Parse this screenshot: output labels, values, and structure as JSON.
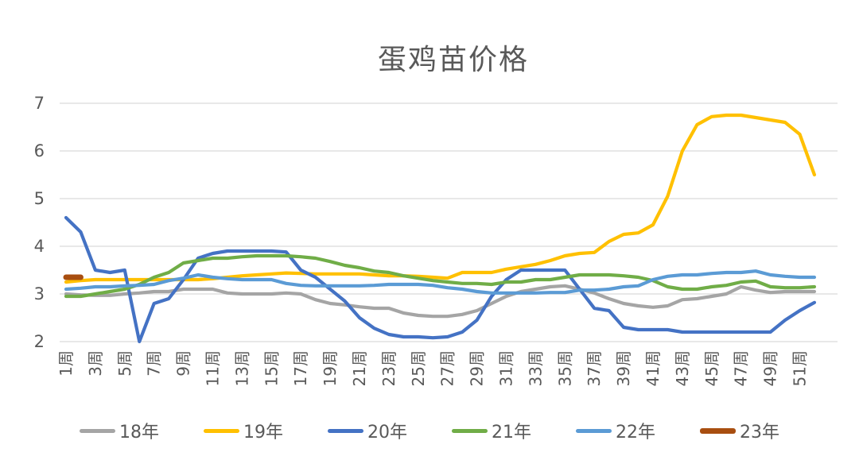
{
  "chart_data": {
    "type": "line",
    "title": "蛋鸡苗价格",
    "x_unit_suffix": "周",
    "n_points": 52,
    "x_tick_labels": [
      "1周",
      "3周",
      "5周",
      "7周",
      "9周",
      "11周",
      "13周",
      "15周",
      "17周",
      "19周",
      "21周",
      "23周",
      "25周",
      "27周",
      "29周",
      "31周",
      "33周",
      "35周",
      "37周",
      "39周",
      "41周",
      "43周",
      "45周",
      "47周",
      "49周",
      "51周"
    ],
    "x_tick_weeks": [
      1,
      3,
      5,
      7,
      9,
      11,
      13,
      15,
      17,
      19,
      21,
      23,
      25,
      27,
      29,
      31,
      33,
      35,
      37,
      39,
      41,
      43,
      45,
      47,
      49,
      51
    ],
    "y_ticks": [
      2,
      3,
      4,
      5,
      6,
      7
    ],
    "ylim": [
      2,
      7
    ],
    "grid": "horizontal-only",
    "legend_position": "bottom",
    "axis_text_color": "#595959",
    "gridline_color": "#D9D9D9",
    "series": [
      {
        "name": "18年",
        "color": "#A5A5A5",
        "values": [
          3.0,
          2.98,
          2.97,
          2.97,
          3.0,
          3.02,
          3.05,
          3.05,
          3.1,
          3.1,
          3.1,
          3.02,
          3.0,
          3.0,
          3.0,
          3.02,
          3.0,
          2.88,
          2.8,
          2.77,
          2.73,
          2.7,
          2.7,
          2.6,
          2.55,
          2.53,
          2.53,
          2.57,
          2.65,
          2.8,
          2.95,
          3.05,
          3.1,
          3.15,
          3.17,
          3.1,
          3.02,
          2.9,
          2.8,
          2.75,
          2.72,
          2.75,
          2.88,
          2.9,
          2.95,
          3.0,
          3.15,
          3.08,
          3.03,
          3.05,
          3.05,
          3.05
        ]
      },
      {
        "name": "19年",
        "color": "#FFC000",
        "values": [
          3.25,
          3.28,
          3.3,
          3.3,
          3.3,
          3.3,
          3.3,
          3.3,
          3.3,
          3.3,
          3.32,
          3.35,
          3.38,
          3.4,
          3.42,
          3.44,
          3.43,
          3.42,
          3.42,
          3.42,
          3.42,
          3.4,
          3.38,
          3.38,
          3.37,
          3.35,
          3.33,
          3.45,
          3.45,
          3.45,
          3.52,
          3.57,
          3.62,
          3.7,
          3.8,
          3.85,
          3.87,
          4.1,
          4.25,
          4.28,
          4.45,
          5.05,
          6.0,
          6.55,
          6.72,
          6.75,
          6.75,
          6.7,
          6.65,
          6.6,
          6.35,
          5.5
        ]
      },
      {
        "name": "20年",
        "color": "#4472C4",
        "values": [
          4.6,
          4.3,
          3.5,
          3.45,
          3.5,
          2.0,
          2.8,
          2.9,
          3.3,
          3.75,
          3.85,
          3.9,
          3.9,
          3.9,
          3.9,
          3.88,
          3.5,
          3.35,
          3.1,
          2.85,
          2.5,
          2.28,
          2.15,
          2.1,
          2.1,
          2.08,
          2.1,
          2.2,
          2.45,
          2.95,
          3.3,
          3.5,
          3.5,
          3.5,
          3.5,
          3.1,
          2.7,
          2.65,
          2.3,
          2.25,
          2.25,
          2.25,
          2.2,
          2.2,
          2.2,
          2.2,
          2.2,
          2.2,
          2.2,
          2.45,
          2.65,
          2.82
        ]
      },
      {
        "name": "21年",
        "color": "#70AD47",
        "values": [
          2.95,
          2.95,
          3.0,
          3.05,
          3.1,
          3.2,
          3.35,
          3.45,
          3.65,
          3.7,
          3.75,
          3.75,
          3.78,
          3.8,
          3.8,
          3.8,
          3.78,
          3.75,
          3.68,
          3.6,
          3.55,
          3.48,
          3.45,
          3.38,
          3.33,
          3.28,
          3.25,
          3.22,
          3.22,
          3.2,
          3.25,
          3.25,
          3.3,
          3.3,
          3.35,
          3.4,
          3.4,
          3.4,
          3.38,
          3.35,
          3.28,
          3.15,
          3.1,
          3.1,
          3.15,
          3.18,
          3.25,
          3.27,
          3.15,
          3.13,
          3.13,
          3.15
        ]
      },
      {
        "name": "22年",
        "color": "#5B9BD5",
        "values": [
          3.1,
          3.12,
          3.15,
          3.15,
          3.17,
          3.18,
          3.2,
          3.28,
          3.33,
          3.4,
          3.35,
          3.32,
          3.3,
          3.3,
          3.3,
          3.22,
          3.18,
          3.17,
          3.17,
          3.17,
          3.17,
          3.18,
          3.2,
          3.2,
          3.2,
          3.18,
          3.13,
          3.1,
          3.05,
          3.02,
          3.02,
          3.02,
          3.02,
          3.03,
          3.03,
          3.08,
          3.08,
          3.1,
          3.15,
          3.17,
          3.3,
          3.37,
          3.4,
          3.4,
          3.43,
          3.45,
          3.45,
          3.48,
          3.4,
          3.37,
          3.35,
          3.35
        ]
      },
      {
        "name": "23年",
        "color": "#A84E10",
        "values": [
          3.35,
          3.35
        ]
      }
    ]
  },
  "legend": {
    "items": [
      "18年",
      "19年",
      "20年",
      "21年",
      "22年",
      "23年"
    ]
  }
}
